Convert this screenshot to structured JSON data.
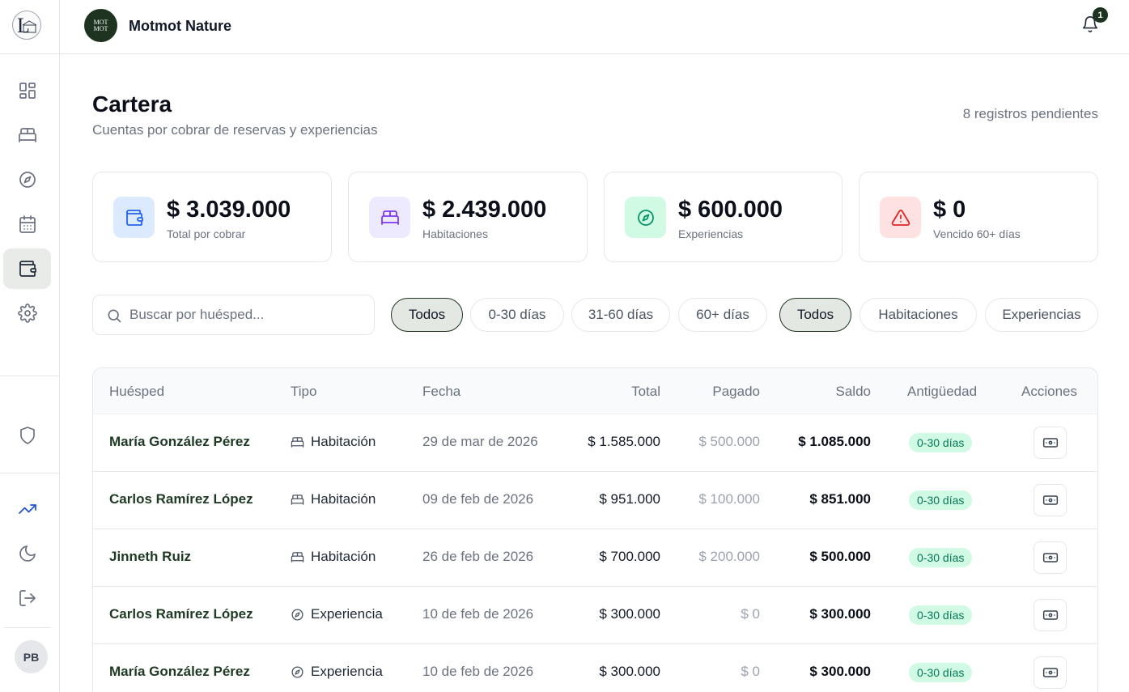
{
  "app": {
    "brand_name": "Motmot Nature",
    "brand_logo_text": "MOT MOT",
    "notification_count": "1",
    "user_initials": "PB"
  },
  "sidebar": {
    "items": [
      {
        "icon": "dashboard-icon"
      },
      {
        "icon": "bed-icon"
      },
      {
        "icon": "compass-icon"
      },
      {
        "icon": "calendar-icon"
      },
      {
        "icon": "wallet-icon",
        "active": true
      },
      {
        "icon": "gear-icon"
      },
      {
        "icon": "shield-icon"
      },
      {
        "icon": "trending-up-icon"
      },
      {
        "icon": "moon-icon"
      },
      {
        "icon": "logout-icon"
      }
    ]
  },
  "page": {
    "title": "Cartera",
    "subtitle": "Cuentas por cobrar de reservas y experiencias",
    "pending": "8 registros pendientes"
  },
  "stats": [
    {
      "value": "$ 3.039.000",
      "label": "Total por cobrar",
      "icon": "wallet-icon",
      "color": "#2563eb",
      "bg": "#dbeafe"
    },
    {
      "value": "$ 2.439.000",
      "label": "Habitaciones",
      "icon": "bed-icon",
      "color": "#7c3aed",
      "bg": "#ede9fe"
    },
    {
      "value": "$ 600.000",
      "label": "Experiencias",
      "icon": "compass-icon",
      "color": "#059669",
      "bg": "#d1fae5"
    },
    {
      "value": "$ 0",
      "label": "Vencido 60+ días",
      "icon": "alert-triangle-icon",
      "color": "#dc2626",
      "bg": "#fee2e2"
    }
  ],
  "search": {
    "placeholder": "Buscar por huésped...",
    "value": ""
  },
  "filters": {
    "age": [
      "Todos",
      "0-30 días",
      "31-60 días",
      "60+ días"
    ],
    "age_selected": "Todos",
    "type": [
      "Todos",
      "Habitaciones",
      "Experiencias"
    ],
    "type_selected": "Todos"
  },
  "table": {
    "headers": [
      "Huésped",
      "Tipo",
      "Fecha",
      "Total",
      "Pagado",
      "Saldo",
      "Antigüedad",
      "Acciones"
    ],
    "rows": [
      {
        "guest": "María González Pérez",
        "type": "Habitación",
        "type_icon": "bed-icon",
        "date": "29 de mar de 2026",
        "total": "$ 1.585.000",
        "paid": "$ 500.000",
        "balance": "$ 1.085.000",
        "age": "0-30 días"
      },
      {
        "guest": "Carlos Ramírez López",
        "type": "Habitación",
        "type_icon": "bed-icon",
        "date": "09 de feb de 2026",
        "total": "$ 951.000",
        "paid": "$ 100.000",
        "balance": "$ 851.000",
        "age": "0-30 días"
      },
      {
        "guest": "Jinneth Ruiz",
        "type": "Habitación",
        "type_icon": "bed-icon",
        "date": "26 de feb de 2026",
        "total": "$ 700.000",
        "paid": "$ 200.000",
        "balance": "$ 500.000",
        "age": "0-30 días"
      },
      {
        "guest": "Carlos Ramírez López",
        "type": "Experiencia",
        "type_icon": "compass-icon",
        "date": "10 de feb de 2026",
        "total": "$ 300.000",
        "paid": "$ 0",
        "balance": "$ 300.000",
        "age": "0-30 días"
      },
      {
        "guest": "María González Pérez",
        "type": "Experiencia",
        "type_icon": "compass-icon",
        "date": "10 de feb de 2026",
        "total": "$ 300.000",
        "paid": "$ 0",
        "balance": "$ 300.000",
        "age": "0-30 días"
      }
    ]
  }
}
